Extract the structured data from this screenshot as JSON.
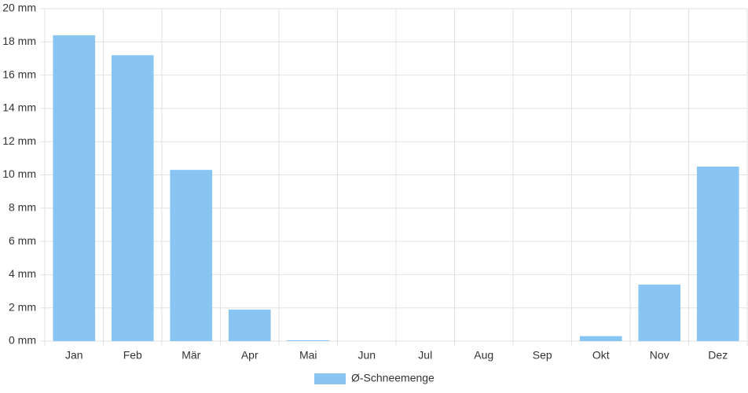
{
  "chart_data": {
    "type": "bar",
    "categories": [
      "Jan",
      "Feb",
      "Mär",
      "Apr",
      "Mai",
      "Jun",
      "Jul",
      "Aug",
      "Sep",
      "Okt",
      "Nov",
      "Dez"
    ],
    "series": [
      {
        "name": "Ø-Schneemenge",
        "color": "#88c5f2",
        "values": [
          18.4,
          17.2,
          10.3,
          1.9,
          0.05,
          0,
          0,
          0,
          0,
          0.3,
          3.4,
          10.5
        ]
      }
    ],
    "ylim": [
      0,
      20
    ],
    "yticks": [
      {
        "value": 0,
        "label": "0 mm"
      },
      {
        "value": 2,
        "label": "2 mm"
      },
      {
        "value": 4,
        "label": "4 mm"
      },
      {
        "value": 6,
        "label": "6 mm"
      },
      {
        "value": 8,
        "label": "8 mm"
      },
      {
        "value": 10,
        "label": "10 mm"
      },
      {
        "value": 12,
        "label": "12 mm"
      },
      {
        "value": 14,
        "label": "14 mm"
      },
      {
        "value": 16,
        "label": "16 mm"
      },
      {
        "value": 18,
        "label": "18 mm"
      },
      {
        "value": 20,
        "label": "20 mm"
      }
    ],
    "grid": true,
    "legend": "bottom"
  }
}
